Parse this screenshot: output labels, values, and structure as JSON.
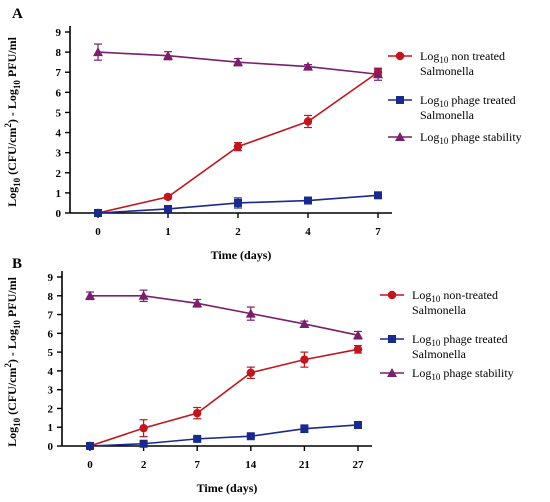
{
  "panels": [
    {
      "letter": "A",
      "ylabel_parts": [
        "Log",
        "10",
        " (CFU/cm",
        "2",
        ") - Log",
        "10",
        " PFU/ml"
      ],
      "xlabel": "Time (days)",
      "legend": [
        {
          "line1_pre": "Log",
          "line1_sub": "10",
          "line1_post": " non treated",
          "line2": "Salmonella"
        },
        {
          "line1_pre": "Log",
          "line1_sub": "10",
          "line1_post": " phage treated",
          "line2": "Salmonella"
        },
        {
          "line1_pre": "Log",
          "line1_sub": "10",
          "line1_post": " phage stability",
          "line2": ""
        }
      ]
    },
    {
      "letter": "B",
      "ylabel_parts": [
        "Log",
        "10",
        " (CFU/cm",
        "2",
        ") - Log",
        "10",
        " PFU/ml"
      ],
      "xlabel": "Time (days)",
      "legend": [
        {
          "line1_pre": "Log",
          "line1_sub": "10",
          "line1_post": " non-treated",
          "line2": "Salmonella"
        },
        {
          "line1_pre": "Log",
          "line1_sub": "10",
          "line1_post": " phage treated",
          "line2": "Salmonella"
        },
        {
          "line1_pre": "Log",
          "line1_sub": "10",
          "line1_post": " phage stability",
          "line2": ""
        }
      ]
    }
  ],
  "colors": {
    "non_treated": "#c0161d",
    "phage_treated": "#1a2a8c",
    "phage_stability": "#7a1f6e"
  },
  "chart_data": [
    {
      "type": "line",
      "title": "A",
      "xlabel": "Time (days)",
      "ylabel": "Log10 (CFU/cm2) - Log10 PFU/ml",
      "categories": [
        "0",
        "1",
        "2",
        "4",
        "7"
      ],
      "ylim": [
        0,
        9
      ],
      "yticks": [
        0,
        1,
        2,
        3,
        4,
        5,
        6,
        7,
        8,
        9
      ],
      "grid": false,
      "legend_position": "right",
      "series": [
        {
          "name": "Log10 non treated Salmonella",
          "marker": "circle",
          "color_key": "non_treated",
          "values": [
            0.0,
            0.8,
            3.3,
            4.55,
            7.0
          ],
          "errors": [
            0.05,
            0.1,
            0.2,
            0.3,
            0.15
          ]
        },
        {
          "name": "Log10 phage treated Salmonella",
          "marker": "square",
          "color_key": "phage_treated",
          "values": [
            0.0,
            0.2,
            0.5,
            0.62,
            0.88
          ],
          "errors": [
            0.05,
            0.1,
            0.25,
            0.1,
            0.05
          ]
        },
        {
          "name": "Log10 phage stability",
          "marker": "triangle",
          "color_key": "phage_stability",
          "values": [
            8.0,
            7.82,
            7.5,
            7.28,
            6.9
          ],
          "errors": [
            0.4,
            0.2,
            0.18,
            0.1,
            0.3
          ]
        }
      ]
    },
    {
      "type": "line",
      "title": "B",
      "xlabel": "Time (days)",
      "ylabel": "Log10 (CFU/cm2) - Log10 PFU/ml",
      "categories": [
        "0",
        "2",
        "7",
        "14",
        "21",
        "27"
      ],
      "ylim": [
        0,
        9
      ],
      "yticks": [
        0,
        1,
        2,
        3,
        4,
        5,
        6,
        7,
        8,
        9
      ],
      "grid": false,
      "legend_position": "right",
      "series": [
        {
          "name": "Log10 non-treated Salmonella",
          "marker": "circle",
          "color_key": "non_treated",
          "values": [
            0.0,
            0.95,
            1.75,
            3.9,
            4.6,
            5.15
          ],
          "errors": [
            0.05,
            0.45,
            0.3,
            0.3,
            0.4,
            0.2
          ]
        },
        {
          "name": "Log10 phage treated Salmonella",
          "marker": "square",
          "color_key": "phage_treated",
          "values": [
            0.0,
            0.12,
            0.38,
            0.52,
            0.92,
            1.12
          ],
          "errors": [
            0.05,
            0.1,
            0.1,
            0.08,
            0.2,
            0.1
          ]
        },
        {
          "name": "Log10 phage stability",
          "marker": "triangle",
          "color_key": "phage_stability",
          "values": [
            8.0,
            8.0,
            7.6,
            7.05,
            6.5,
            5.9
          ],
          "errors": [
            0.2,
            0.3,
            0.2,
            0.35,
            0.15,
            0.2
          ]
        }
      ]
    }
  ]
}
